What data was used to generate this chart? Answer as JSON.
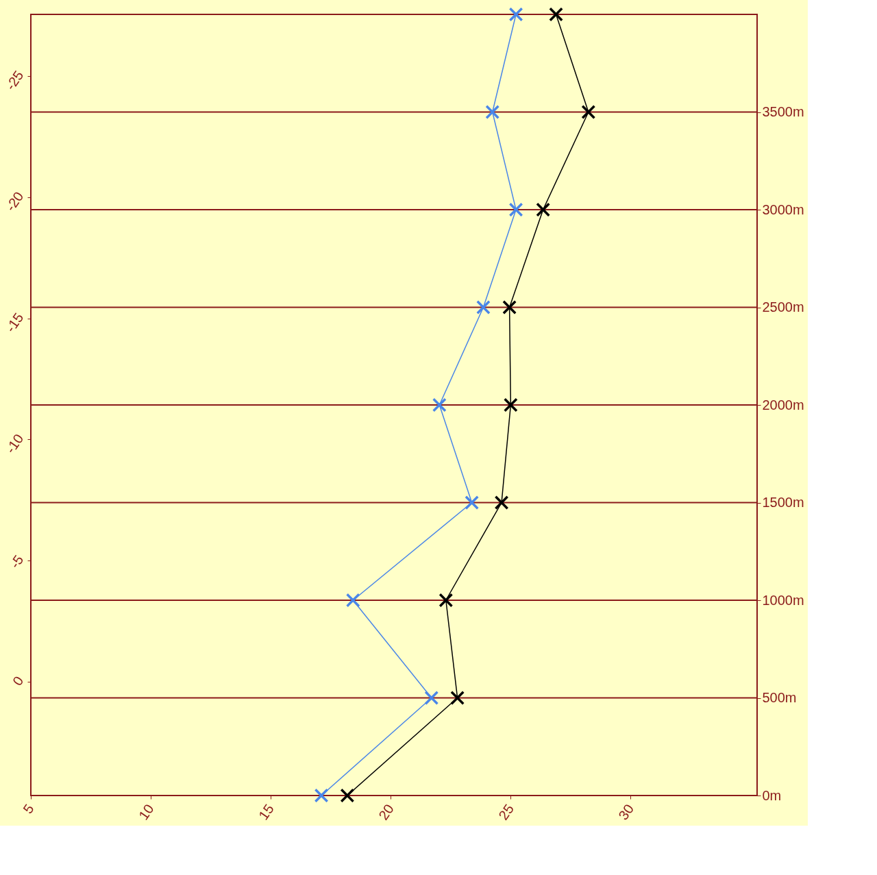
{
  "chart_data": {
    "type": "line",
    "marker": "cross",
    "grid": "y",
    "xlim": [
      5,
      35.27
    ],
    "xticks": [
      5,
      10,
      15,
      20,
      25,
      30
    ],
    "ylim": [
      0,
      4000
    ],
    "yticks": [
      {
        "value": 0,
        "label": "0m"
      },
      {
        "value": 500,
        "label": "500m"
      },
      {
        "value": 1000,
        "label": "1000m"
      },
      {
        "value": 1500,
        "label": "1500m"
      },
      {
        "value": 2000,
        "label": "2000m"
      },
      {
        "value": 2500,
        "label": "2500m"
      },
      {
        "value": 3000,
        "label": "3000m"
      },
      {
        "value": 3500,
        "label": "3500m"
      }
    ],
    "y2lim": [
      4.7,
      -27.55
    ],
    "y2ticks": [
      0,
      -5,
      -10,
      -15,
      -20,
      -25
    ],
    "series": [
      {
        "color": "#000000",
        "x": [
          18.19,
          22.78,
          22.3,
          24.62,
          25.0,
          24.95,
          26.35,
          28.24,
          26.89
        ],
        "values": [
          0,
          500,
          1000,
          1500,
          2000,
          2500,
          3000,
          3500,
          4000
        ]
      },
      {
        "color": "#4a86e8",
        "x": [
          17.11,
          21.7,
          18.43,
          23.38,
          22.03,
          23.86,
          25.22,
          24.24,
          25.22
        ],
        "values": [
          0,
          500,
          1000,
          1500,
          2000,
          2500,
          3000,
          3500,
          4000
        ]
      }
    ]
  }
}
